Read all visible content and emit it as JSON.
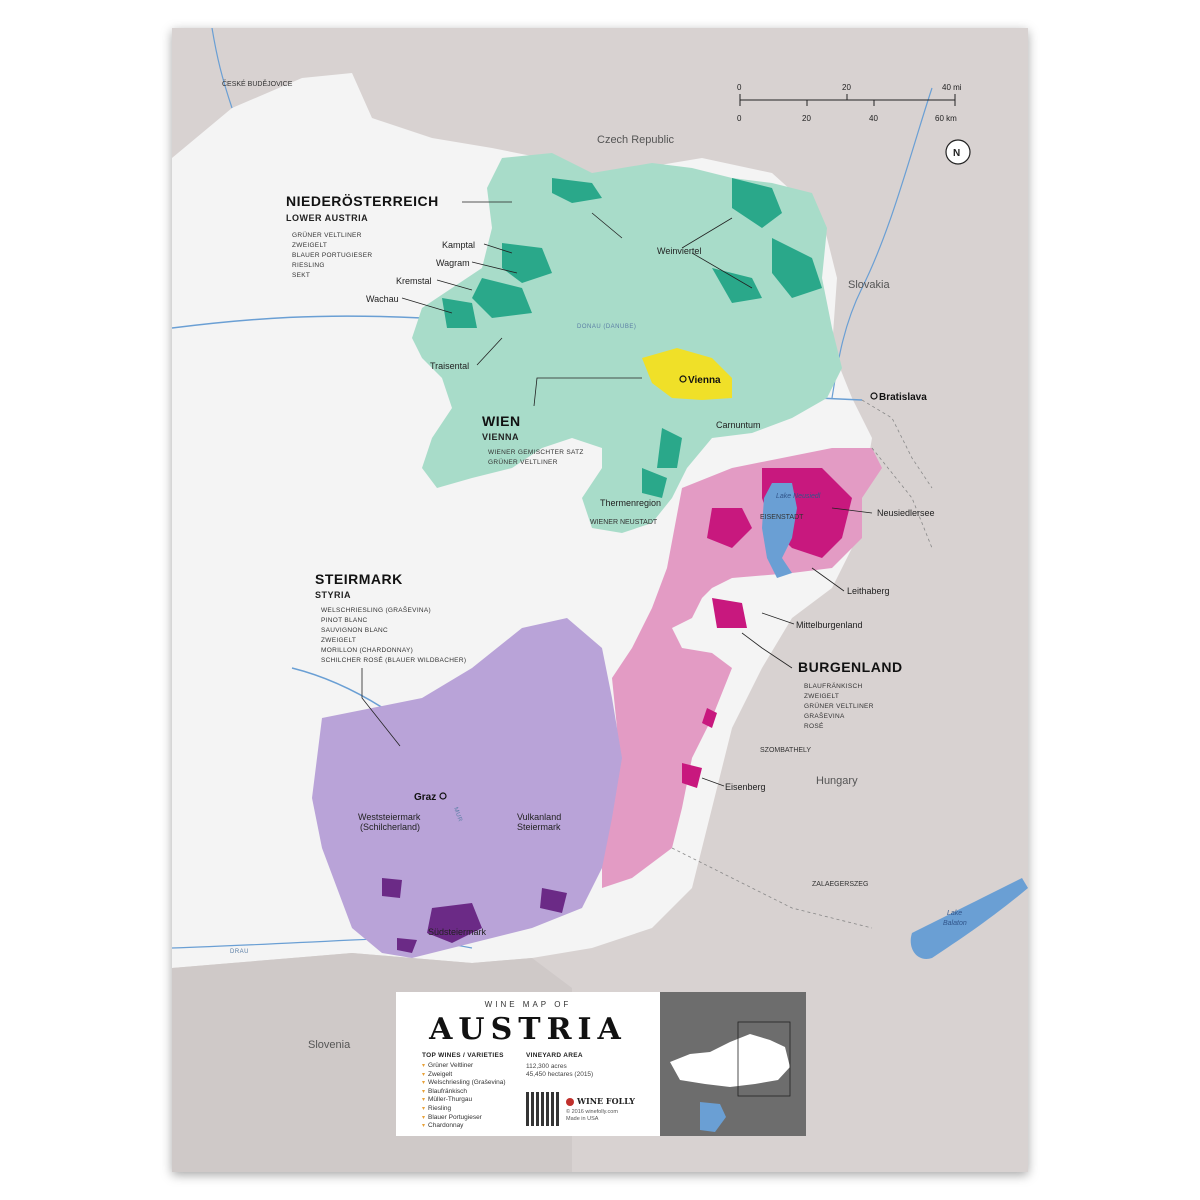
{
  "title_small": "WINE MAP OF",
  "title_big": "AUSTRIA",
  "legend": {
    "top_wines_heading": "TOP WINES / VARIETIES",
    "top_wines": [
      "Grüner Veltliner",
      "Zweigelt",
      "Welschriesling (Graševina)",
      "Blaufränkisch",
      "Müller-Thurgau",
      "Riesling",
      "Blauer Portugieser",
      "Chardonnay"
    ],
    "vineyard_heading": "VINEYARD AREA",
    "vineyard_lines": [
      "112,300 acres",
      "45,450 hectares (2015)"
    ],
    "brand": "WINE FOLLY",
    "copyright": [
      "© 2016 winefolly.com",
      "Made in USA"
    ]
  },
  "scale": {
    "mi_ticks": [
      "0",
      "20",
      "40 mi"
    ],
    "km_ticks": [
      "0",
      "20",
      "40",
      "60 km"
    ],
    "north": "N"
  },
  "countries": {
    "czech": "Czech Republic",
    "slovakia": "Slovakia",
    "hungary": "Hungary",
    "slovenia": "Slovenia"
  },
  "cities": {
    "ceske": "ČESKÉ BUDĚJOVICE",
    "vienna": "Vienna",
    "bratislava": "Bratislava",
    "graz": "Graz",
    "wiener_neustadt": "WIENER NEUSTADT",
    "eisenstadt": "EISENSTADT",
    "szombathely": "SZOMBATHELY",
    "zalaegerszeg": "ZALAEGERSZEG"
  },
  "rivers": {
    "donau": "DONAU (DANUBE)",
    "mur": "MUR",
    "drau": "DRAU"
  },
  "lakes": {
    "neusiedl": "Lake Neusiedl",
    "balaton_1": "Lake",
    "balaton_2": "Balaton"
  },
  "regions": {
    "niederosterreich": {
      "name": "NIEDERÖSTERREICH",
      "sub": "LOWER AUSTRIA",
      "varieties": [
        "GRÜNER VELTLINER",
        "ZWEIGELT",
        "BLAUER PORTUGIESER",
        "RIESLING",
        "SEKT"
      ]
    },
    "wien": {
      "name": "WIEN",
      "sub": "VIENNA",
      "varieties": [
        "WIENER GEMISCHTER SATZ",
        "GRÜNER VELTLINER"
      ]
    },
    "steirmark": {
      "name": "STEIRMARK",
      "sub": "STYRIA",
      "varieties": [
        "WELSCHRIESLING (GRAŠEVINA)",
        "PINOT BLANC",
        "SAUVIGNON BLANC",
        "ZWEIGELT",
        "MORILLON (CHARDONNAY)",
        "SCHILCHER ROSÉ (BLAUER WILDBACHER)"
      ]
    },
    "burgenland": {
      "name": "BURGENLAND",
      "varieties": [
        "BLAUFRÄNKISCH",
        "ZWEIGELT",
        "GRÜNER VELTLINER",
        "GRAŠEVINA",
        "ROSÉ"
      ]
    }
  },
  "subregions": {
    "kamptal": "Kamptal",
    "wagram": "Wagram",
    "kremstal": "Kremstal",
    "wachau": "Wachau",
    "traisental": "Traisental",
    "weinviertel": "Weinviertel",
    "carnuntum": "Carnuntum",
    "thermenregion": "Thermenregion",
    "neusiedlersee": "Neusiedlersee",
    "leithaberg": "Leithaberg",
    "mittelburgenland": "Mittelburgenland",
    "eisenberg": "Eisenberg",
    "weststeiermark_1": "Weststeiermark",
    "weststeiermark_2": "(Schilcherland)",
    "vulkanland_1": "Vulkanland",
    "vulkanland_2": "Steiermark",
    "sudsteiermark": "Südsteiermark"
  },
  "colors": {
    "teal": "#a8dcc9",
    "teal_dark": "#2aa88a",
    "yellow": "#f0e028",
    "pink": "#e39bc4",
    "magenta": "#c8187e",
    "purple": "#b9a3d8",
    "purple_dark": "#6b2a86",
    "water": "#6a9fd4",
    "bg": "#d6d0d0"
  }
}
